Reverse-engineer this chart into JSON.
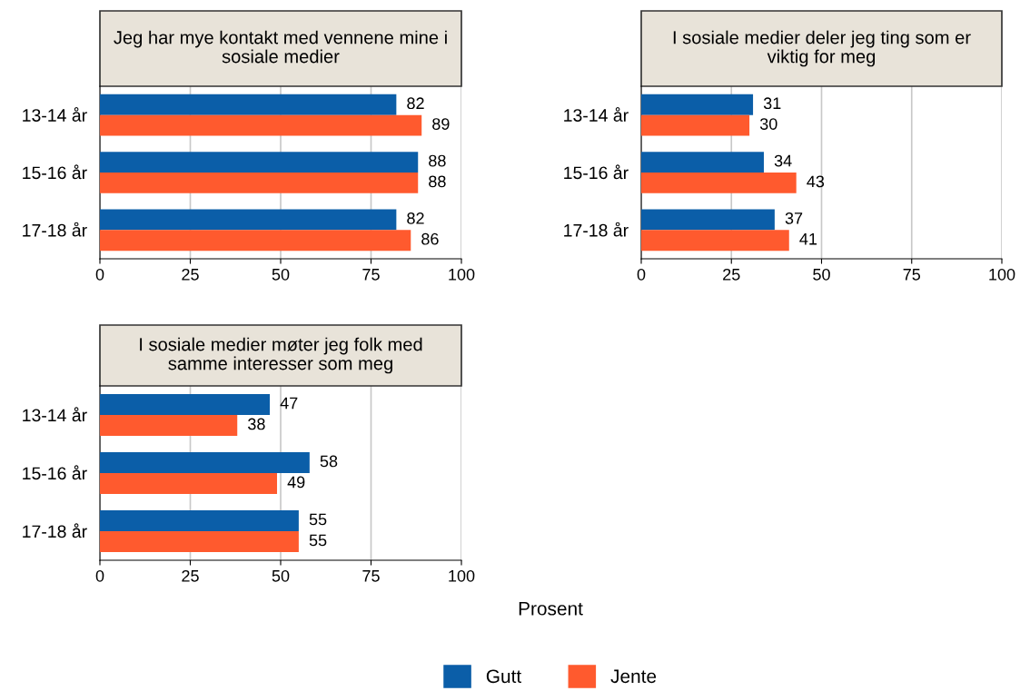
{
  "chart_data": [
    {
      "type": "bar",
      "orientation": "horizontal",
      "title": "Jeg har mye kontakt med vennene mine i sosiale medier",
      "categories": [
        "13-14 år",
        "15-16 år",
        "17-18 år"
      ],
      "series": [
        {
          "name": "Gutt",
          "color": "#0b5ea8",
          "values": [
            82,
            88,
            82
          ]
        },
        {
          "name": "Jente",
          "color": "#ff5a2e",
          "values": [
            89,
            88,
            86
          ]
        }
      ],
      "xlim": [
        0,
        100
      ],
      "xticks": [
        0,
        25,
        50,
        75,
        100
      ],
      "grid": "x",
      "data_labels": true,
      "legend": "bottom"
    },
    {
      "type": "bar",
      "orientation": "horizontal",
      "title": "I sosiale medier deler jeg ting som er viktig for meg",
      "categories": [
        "13-14 år",
        "15-16 år",
        "17-18 år"
      ],
      "series": [
        {
          "color": "#0b5ea8",
          "values": [
            31,
            34,
            37
          ]
        },
        {
          "color": "#ff5a2e",
          "values": [
            30,
            43,
            41
          ]
        }
      ],
      "xlim": [
        0,
        100
      ],
      "xticks": [
        0,
        25,
        50,
        75,
        100
      ],
      "grid": "x",
      "data_labels": true
    },
    {
      "type": "bar",
      "orientation": "horizontal",
      "title": "I sosiale medier møter jeg folk med samme interesser som meg",
      "xlabel": "Prosent",
      "categories": [
        "13-14 år",
        "15-16 år",
        "17-18 år"
      ],
      "series": [
        {
          "color": "#0b5ea8",
          "values": [
            47,
            58,
            55
          ]
        },
        {
          "color": "#ff5a2e",
          "values": [
            38,
            49,
            55
          ]
        }
      ],
      "xlim": [
        0,
        100
      ],
      "xticks": [
        0,
        25,
        50,
        75,
        100
      ],
      "grid": "x",
      "data_labels": true
    }
  ]
}
